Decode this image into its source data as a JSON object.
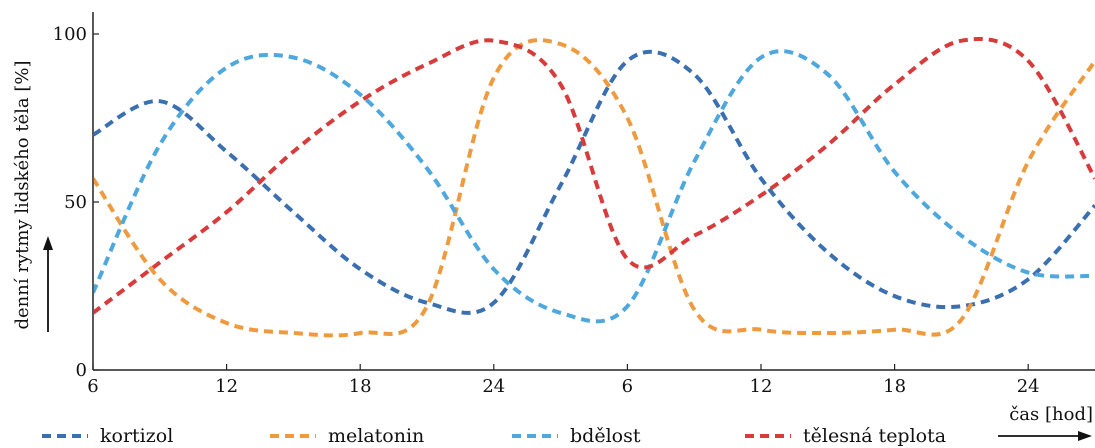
{
  "chart_data": {
    "type": "line",
    "xlabel": "čas [hod]",
    "ylabel": "denní rytmy lidského těla [%]",
    "ylim": [
      0,
      100
    ],
    "x_hours": [
      6,
      9,
      12,
      15,
      18,
      21,
      24,
      27,
      30,
      33,
      36,
      39,
      42,
      45,
      48,
      51
    ],
    "x_ticks": [
      {
        "hour": 6,
        "label": "6"
      },
      {
        "hour": 12,
        "label": "12"
      },
      {
        "hour": 18,
        "label": "18"
      },
      {
        "hour": 24,
        "label": "24"
      },
      {
        "hour": 30,
        "label": "6"
      },
      {
        "hour": 36,
        "label": "12"
      },
      {
        "hour": 42,
        "label": "18"
      },
      {
        "hour": 48,
        "label": "24"
      }
    ],
    "y_ticks": [
      0,
      50,
      100
    ],
    "series": [
      {
        "name": "kortizol",
        "color": "#3a6fb0",
        "values": [
          70,
          80,
          65,
          47,
          30,
          20,
          20,
          55,
          92,
          88,
          57,
          35,
          22,
          19,
          27,
          49
        ]
      },
      {
        "name": "melatonin",
        "color": "#ee9b3f",
        "values": [
          57,
          27,
          14,
          11,
          11,
          19,
          87,
          97,
          75,
          18,
          12,
          11,
          12,
          15,
          62,
          92
        ]
      },
      {
        "name": "bdělost",
        "color": "#4ea7dd",
        "values": [
          23,
          67,
          90,
          93,
          82,
          60,
          30,
          17,
          19,
          62,
          93,
          88,
          59,
          40,
          29,
          28
        ]
      },
      {
        "name": "tělesná teplota",
        "color": "#d83b3b",
        "values": [
          17,
          32,
          47,
          65,
          80,
          91,
          98,
          85,
          33,
          40,
          52,
          67,
          85,
          98,
          92,
          57
        ]
      }
    ]
  }
}
